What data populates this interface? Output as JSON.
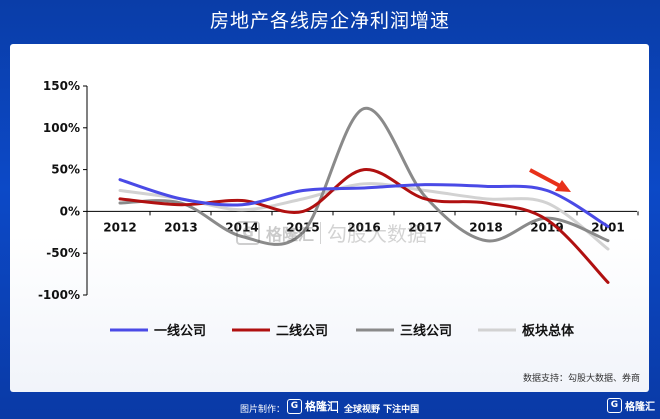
{
  "title": "房地产各线房企净利润增速",
  "source_note": "数据支持：勾股大数据、券商",
  "watermark": {
    "brand": "格隆汇",
    "text": "勾股大数据"
  },
  "footer": {
    "maker_label": "图片制作：",
    "brand": "格隆汇",
    "slogan": "全球视野 下注中国",
    "corner_brand": "格隆汇"
  },
  "colors": {
    "background": "#0c47c2",
    "panel": "#ffffff"
  },
  "chart_data": {
    "type": "line",
    "title": "房地产各线房企净利润增速",
    "categories": [
      "2012",
      "2013",
      "2014",
      "2015",
      "2016",
      "2017",
      "2018",
      "2019",
      "2001"
    ],
    "yticks": [
      "150%",
      "100%",
      "50%",
      "0%",
      "-50%",
      "-100%"
    ],
    "ytick_values": [
      150,
      100,
      50,
      0,
      -50,
      -100
    ],
    "ylim": [
      -100,
      150
    ],
    "series": [
      {
        "name": "一线公司",
        "color": "#4a4ae6",
        "values": [
          38,
          15,
          8,
          25,
          28,
          32,
          30,
          25,
          -18
        ]
      },
      {
        "name": "二线公司",
        "color": "#b01010",
        "values": [
          15,
          8,
          13,
          0,
          50,
          15,
          10,
          -10,
          -85
        ]
      },
      {
        "name": "三线公司",
        "color": "#8a8a8a",
        "values": [
          10,
          10,
          -30,
          -25,
          123,
          18,
          -35,
          -8,
          -35
        ]
      },
      {
        "name": "板块总体",
        "color": "#d2d2d2",
        "values": [
          25,
          15,
          2,
          15,
          33,
          25,
          15,
          10,
          -45
        ]
      }
    ],
    "annotation": "red arrow pointing to 2019 one-line decline",
    "grid": false,
    "legend_position": "bottom"
  }
}
